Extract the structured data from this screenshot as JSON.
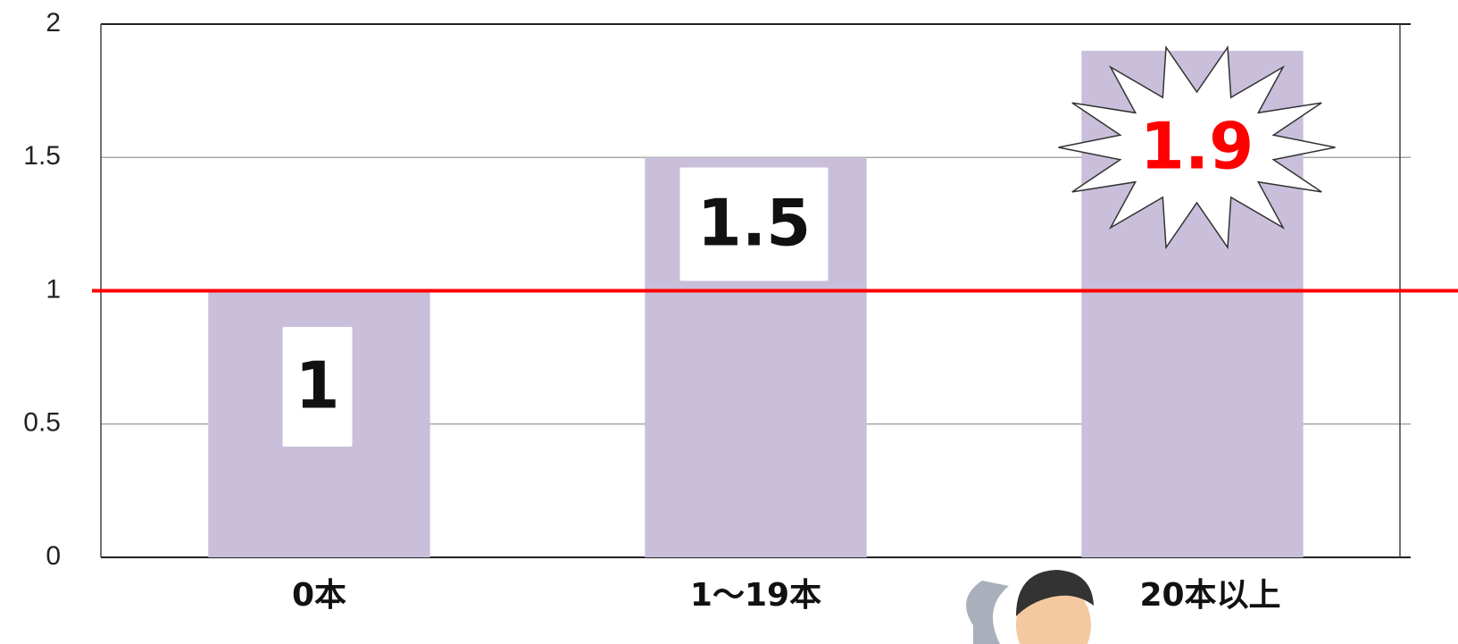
{
  "chart_data": {
    "type": "bar",
    "categories": [
      "0本",
      "1〜19本",
      "20本以上"
    ],
    "values": [
      1,
      1.5,
      1.9
    ],
    "color": "#c9bfdb",
    "value_label_colors": [
      "#111111",
      "#111111",
      "#ff0000"
    ],
    "ylim": [
      0,
      2
    ],
    "yticks": [
      0,
      0.5,
      1,
      1.5,
      2
    ],
    "grid": true,
    "reference_line": {
      "value": 1,
      "color": "#ff0000"
    }
  }
}
